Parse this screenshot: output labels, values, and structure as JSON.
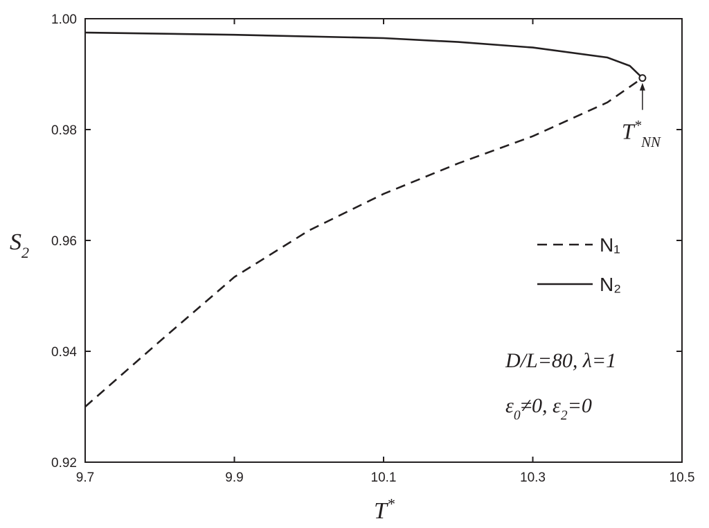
{
  "chart_data": {
    "type": "line",
    "xlabel": [
      {
        "text": "T"
      },
      {
        "sup": "*"
      }
    ],
    "ylabel": [
      {
        "text": "S"
      },
      {
        "sub": "2"
      }
    ],
    "xlim": [
      9.7,
      10.5
    ],
    "ylim": [
      0.92,
      1.0
    ],
    "xticks": [
      9.7,
      9.9,
      10.1,
      10.3,
      10.5
    ],
    "yticks": [
      0.92,
      0.94,
      0.96,
      0.98,
      {
        "value": 1.0,
        "label": "1.00"
      }
    ],
    "series": [
      {
        "name": "N₁",
        "color": "#231f20",
        "dash": true,
        "x": [
          9.7,
          9.8,
          9.9,
          10.0,
          10.1,
          10.2,
          10.3,
          10.4,
          10.447
        ],
        "values": [
          0.93,
          0.9418,
          0.9534,
          0.9618,
          0.9684,
          0.9739,
          0.9788,
          0.9849,
          0.9893
        ]
      },
      {
        "name": "N₂",
        "color": "#231f20",
        "dash": false,
        "x": [
          9.7,
          9.9,
          10.1,
          10.2,
          10.3,
          10.4,
          10.43,
          10.447
        ],
        "values": [
          0.9975,
          0.9971,
          0.9965,
          0.9958,
          0.9948,
          0.993,
          0.9915,
          0.9893
        ]
      }
    ],
    "legend": "right",
    "critical_point": {
      "label": [
        {
          "text": "T"
        },
        {
          "sup": "*"
        },
        {
          "sub": "NN"
        }
      ]
    },
    "notes": [
      [
        {
          "text": "D/L=80, λ=1"
        }
      ],
      [
        {
          "text": "ε"
        },
        {
          "sub": "0"
        },
        {
          "text": "≠0, ε"
        },
        {
          "sub": "2"
        },
        {
          "text": "=0"
        }
      ]
    ]
  }
}
